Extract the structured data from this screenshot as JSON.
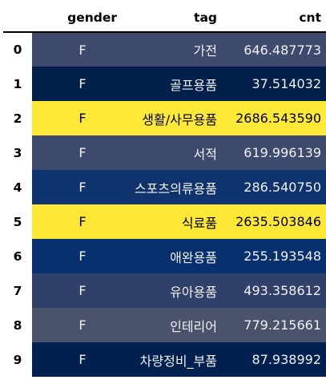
{
  "columns": {
    "index": "",
    "gender": "gender",
    "tag": "tag",
    "cnt": "cnt"
  },
  "rows": [
    {
      "index": "0",
      "gender": "F",
      "tag": "가전",
      "cnt": "646.487773",
      "bg": "#3e4a6e",
      "fg": "#f1f1f1"
    },
    {
      "index": "1",
      "gender": "F",
      "tag": "골프용품",
      "cnt": "37.514032",
      "bg": "#00204c",
      "fg": "#f1f1f1"
    },
    {
      "index": "2",
      "gender": "F",
      "tag": "생활/사무용품",
      "cnt": "2686.543590",
      "bg": "#fee838",
      "fg": "#000000"
    },
    {
      "index": "3",
      "gender": "F",
      "tag": "서적",
      "cnt": "619.996139",
      "bg": "#3c4a6e",
      "fg": "#f1f1f1"
    },
    {
      "index": "4",
      "gender": "F",
      "tag": "스포츠의류용품",
      "cnt": "286.540750",
      "bg": "#0e336d",
      "fg": "#f1f1f1"
    },
    {
      "index": "5",
      "gender": "F",
      "tag": "식료품",
      "cnt": "2635.503846",
      "bg": "#fde737",
      "fg": "#000000"
    },
    {
      "index": "6",
      "gender": "F",
      "tag": "애완용품",
      "cnt": "255.193548",
      "bg": "#07306e",
      "fg": "#f1f1f1"
    },
    {
      "index": "7",
      "gender": "F",
      "tag": "유아용품",
      "cnt": "493.358612",
      "bg": "#2f4069",
      "fg": "#f1f1f1"
    },
    {
      "index": "8",
      "gender": "F",
      "tag": "인테리어",
      "cnt": "779.215661",
      "bg": "#4a526c",
      "fg": "#f1f1f1"
    },
    {
      "index": "9",
      "gender": "F",
      "tag": "차량정비_부품",
      "cnt": "87.938992",
      "bg": "#00204f",
      "fg": "#f1f1f1"
    }
  ]
}
